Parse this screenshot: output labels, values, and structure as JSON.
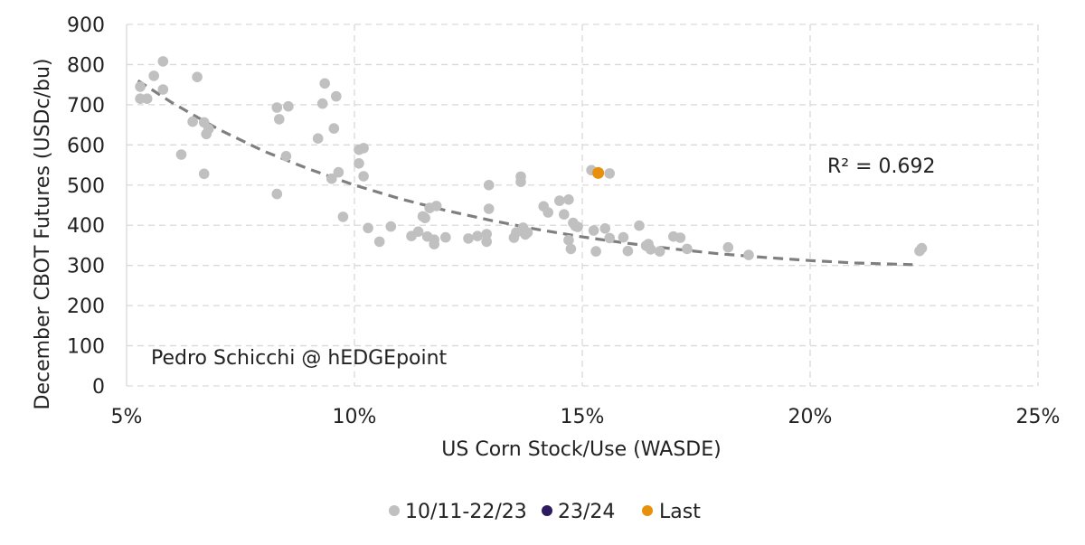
{
  "chart_data": {
    "type": "scatter",
    "xlabel": "US Corn Stock/Use (WASDE)",
    "ylabel": "December CBOT Futures (USDc/bu)",
    "xlim": [
      5,
      25
    ],
    "ylim": [
      0,
      900
    ],
    "x_ticks": [
      5,
      10,
      15,
      20,
      25
    ],
    "x_tick_labels": [
      "5%",
      "10%",
      "15%",
      "20%",
      "25%"
    ],
    "y_ticks": [
      0,
      100,
      200,
      300,
      400,
      500,
      600,
      700,
      800,
      900
    ],
    "y_tick_labels": [
      "0",
      "100",
      "200",
      "300",
      "400",
      "500",
      "600",
      "700",
      "800",
      "900"
    ],
    "grid": "dashed",
    "legend_position": "bottom",
    "annotations": {
      "r_squared": "R² = 0.692",
      "author": "Pedro Schicchi @ hEDGEpoint"
    },
    "trendline": {
      "style": "dashed",
      "color": "#7f7f7f",
      "x_range": [
        5.25,
        22.25
      ],
      "points": [
        [
          5.25,
          760
        ],
        [
          6.0,
          705
        ],
        [
          7.0,
          640
        ],
        [
          8.0,
          585
        ],
        [
          9.0,
          540
        ],
        [
          10.0,
          500
        ],
        [
          11.0,
          466
        ],
        [
          12.0,
          437
        ],
        [
          13.0,
          412
        ],
        [
          14.0,
          390
        ],
        [
          15.0,
          371
        ],
        [
          16.0,
          355
        ],
        [
          17.0,
          341
        ],
        [
          18.0,
          329
        ],
        [
          19.0,
          320
        ],
        [
          20.0,
          312
        ],
        [
          21.0,
          306
        ],
        [
          22.25,
          302
        ]
      ]
    },
    "series": [
      {
        "name": "10/11-22/23",
        "color": "#c0c0c0",
        "points": [
          [
            5.3,
            745
          ],
          [
            5.3,
            715
          ],
          [
            5.45,
            715
          ],
          [
            5.6,
            772
          ],
          [
            5.8,
            808
          ],
          [
            5.8,
            738
          ],
          [
            6.2,
            576
          ],
          [
            6.45,
            658
          ],
          [
            6.55,
            769
          ],
          [
            6.7,
            656
          ],
          [
            6.75,
            627
          ],
          [
            6.8,
            640
          ],
          [
            6.7,
            528
          ],
          [
            8.3,
            693
          ],
          [
            8.35,
            664
          ],
          [
            8.5,
            572
          ],
          [
            8.55,
            696
          ],
          [
            8.3,
            478
          ],
          [
            9.2,
            616
          ],
          [
            9.3,
            703
          ],
          [
            9.35,
            753
          ],
          [
            9.5,
            516
          ],
          [
            9.55,
            641
          ],
          [
            9.6,
            721
          ],
          [
            9.65,
            532
          ],
          [
            9.75,
            421
          ],
          [
            10.1,
            588
          ],
          [
            10.1,
            554
          ],
          [
            10.2,
            592
          ],
          [
            10.2,
            522
          ],
          [
            10.3,
            393
          ],
          [
            10.55,
            359
          ],
          [
            10.8,
            397
          ],
          [
            11.25,
            373
          ],
          [
            11.4,
            384
          ],
          [
            11.5,
            422
          ],
          [
            11.55,
            418
          ],
          [
            11.6,
            372
          ],
          [
            11.65,
            443
          ],
          [
            11.75,
            364
          ],
          [
            11.75,
            353
          ],
          [
            11.8,
            448
          ],
          [
            12.0,
            370
          ],
          [
            12.5,
            367
          ],
          [
            12.7,
            373
          ],
          [
            12.9,
            378
          ],
          [
            12.9,
            359
          ],
          [
            12.95,
            500
          ],
          [
            12.95,
            441
          ],
          [
            13.5,
            369
          ],
          [
            13.55,
            382
          ],
          [
            13.65,
            521
          ],
          [
            13.65,
            508
          ],
          [
            13.7,
            394
          ],
          [
            13.75,
            377
          ],
          [
            13.8,
            382
          ],
          [
            14.15,
            447
          ],
          [
            14.25,
            432
          ],
          [
            14.5,
            461
          ],
          [
            14.6,
            427
          ],
          [
            14.7,
            363
          ],
          [
            14.7,
            464
          ],
          [
            14.75,
            341
          ],
          [
            14.8,
            406
          ],
          [
            14.85,
            398
          ],
          [
            14.9,
            396
          ],
          [
            15.2,
            537
          ],
          [
            15.25,
            387
          ],
          [
            15.3,
            335
          ],
          [
            15.5,
            392
          ],
          [
            15.6,
            529
          ],
          [
            15.6,
            368
          ],
          [
            15.9,
            370
          ],
          [
            16.0,
            336
          ],
          [
            16.25,
            399
          ],
          [
            16.4,
            349
          ],
          [
            16.45,
            353
          ],
          [
            16.5,
            340
          ],
          [
            16.7,
            335
          ],
          [
            17.0,
            372
          ],
          [
            17.15,
            369
          ],
          [
            17.3,
            341
          ],
          [
            18.2,
            345
          ],
          [
            18.65,
            326
          ],
          [
            22.4,
            336
          ],
          [
            22.45,
            343
          ]
        ]
      },
      {
        "name": "23/24",
        "color": "#2e1a5e",
        "points": []
      },
      {
        "name": "Last",
        "color": "#e8900c",
        "points": [
          [
            15.35,
            530
          ]
        ]
      }
    ]
  }
}
